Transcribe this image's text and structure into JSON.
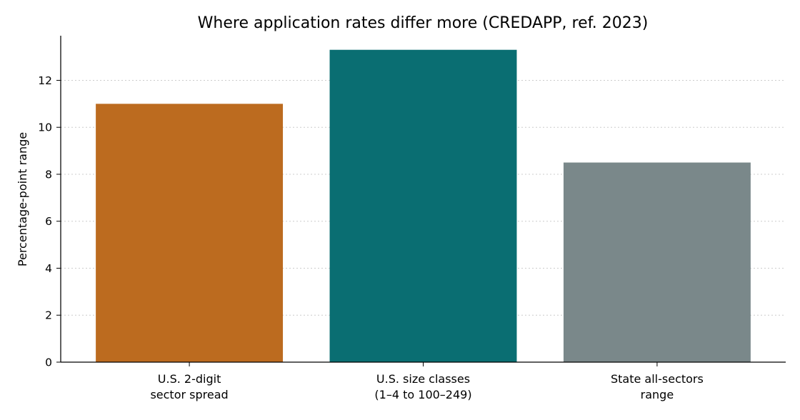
{
  "chart_data": {
    "type": "bar",
    "title": "Where application rates differ more (CREDAPP, ref. 2023)",
    "xlabel": "",
    "ylabel": "Percentage-point range",
    "ylim": [
      0,
      13.9
    ],
    "yticks": [
      0,
      2,
      4,
      6,
      8,
      10,
      12
    ],
    "grid": "y",
    "categories": [
      [
        "U.S. 2-digit",
        "sector spread"
      ],
      [
        "U.S. size classes",
        "(1–4 to 100–249)"
      ],
      [
        "State all-sectors",
        "range"
      ]
    ],
    "values": [
      11.0,
      13.3,
      8.5
    ],
    "colors": [
      "#bc6b1f",
      "#0a6e72",
      "#7a888a"
    ]
  }
}
